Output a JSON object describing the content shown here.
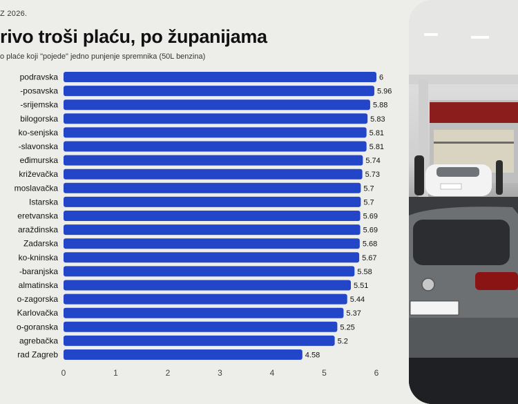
{
  "header": {
    "date": "Z 2026.",
    "title": "rivo troši plaću, po županijama",
    "subtitle": "o plaće koji \"pojede\" jedno punjenje spremnika (50L benzina)"
  },
  "footnote": "",
  "colors": {
    "bar": "#2346c9",
    "text": "#111111",
    "axis": "#444444"
  },
  "chart_data": {
    "type": "bar",
    "orientation": "horizontal",
    "title": "rivo troši plaću, po županijama",
    "xlabel": "",
    "ylabel": "",
    "xlim": [
      0,
      6
    ],
    "x_ticks": [
      "0",
      "1",
      "2",
      "3",
      "4",
      "5",
      "6"
    ],
    "grid": false,
    "categories": [
      "podravska",
      "-posavska",
      "-srijemska",
      "bilogorska",
      "ko-senjska",
      "-slavonska",
      "eđimurska",
      "križevačka",
      "moslavačka",
      "Istarska",
      "eretvanska",
      "araždinska",
      "Zadarska",
      "ko-kninska",
      "-baranjska",
      "almatinska",
      "o-zagorska",
      "Karlovačka",
      "o-goranska",
      "agrebačka",
      "rad Zagreb"
    ],
    "values": [
      6,
      5.96,
      5.88,
      5.83,
      5.81,
      5.81,
      5.74,
      5.73,
      5.7,
      5.7,
      5.69,
      5.69,
      5.68,
      5.67,
      5.58,
      5.51,
      5.44,
      5.37,
      5.25,
      5.2,
      4.58
    ],
    "value_labels": [
      "6",
      "5.96",
      "5.88",
      "5.83",
      "5.81",
      "5.81",
      "5.74",
      "5.73",
      "5.7",
      "5.7",
      "5.69",
      "5.69",
      "5.68",
      "5.67",
      "5.58",
      "5.51",
      "5.44",
      "5.37",
      "5.25",
      "5.2",
      "4.58"
    ]
  }
}
